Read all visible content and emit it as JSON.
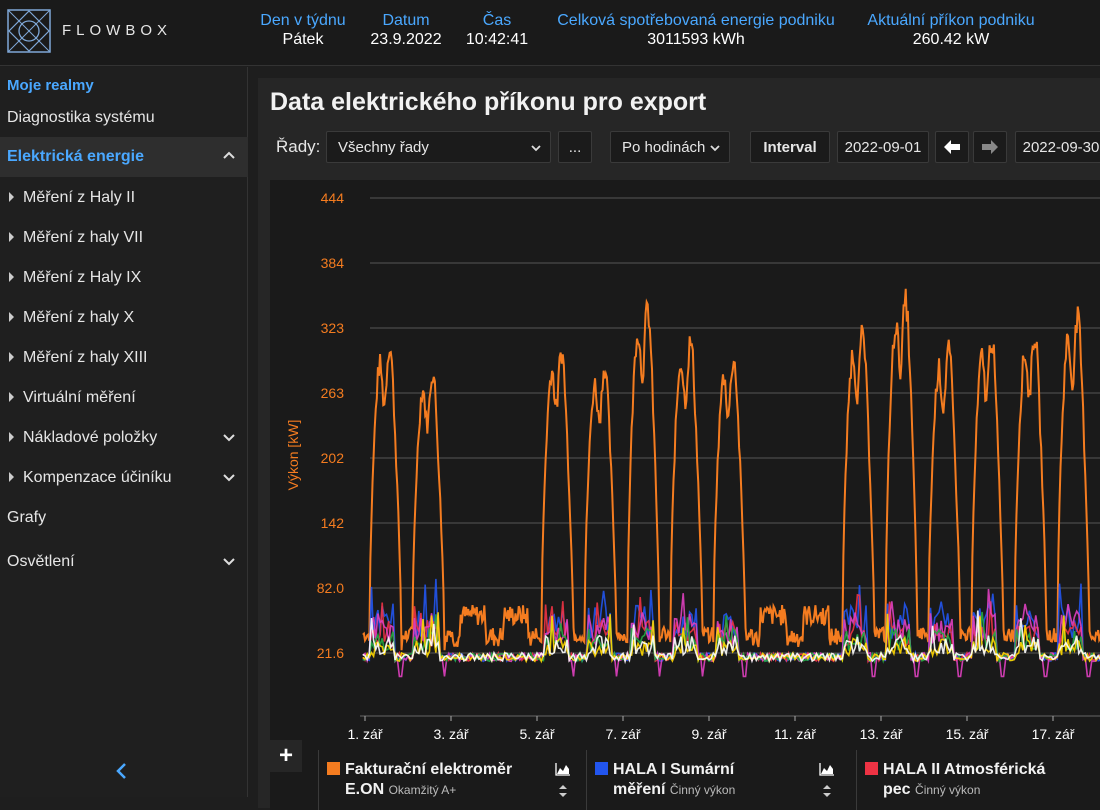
{
  "header": {
    "brand": "FLOWBOX",
    "stats": [
      {
        "label": "Den v týdnu",
        "value": "Pátek"
      },
      {
        "label": "Datum",
        "value": "23.9.2022"
      },
      {
        "label": "Čas",
        "value": "10:42:41"
      },
      {
        "label": "Celková spotřebovaná energie podniku",
        "value": "3011593 kWh"
      },
      {
        "label": "Aktuální příkon podniku",
        "value": "260.42 kW"
      }
    ]
  },
  "sidebar": {
    "title": "Moje realmy",
    "items": [
      {
        "label": "Diagnostika systému"
      },
      {
        "label": "Elektrická energie"
      },
      {
        "label": "Měření z Haly II"
      },
      {
        "label": "Měření z haly VII"
      },
      {
        "label": "Měření z Haly IX"
      },
      {
        "label": "Měření z haly X"
      },
      {
        "label": "Měření z haly XIII"
      },
      {
        "label": "Virtuální měření"
      },
      {
        "label": "Nákladové položky"
      },
      {
        "label": "Kompenzace účiníku"
      },
      {
        "label": "Grafy"
      },
      {
        "label": "Osvětlení"
      }
    ]
  },
  "main": {
    "title": "Data elektrického příkonu pro export",
    "series_label": "Řady:",
    "series_select": "Všechny řady",
    "more_button": "...",
    "granularity_select": "Po hodinách",
    "interval_button": "Interval",
    "date_from": "2022-09-01",
    "date_to": "2022-09-30"
  },
  "legend": [
    {
      "name_line1": "Fakturační elektroměr",
      "name_line2": "E.ON",
      "subtitle": "Okamžitý A+",
      "color": "#f47c20"
    },
    {
      "name_line1": "HALA I Sumární",
      "name_line2": "měření",
      "subtitle": "Činný výkon",
      "color": "#2255ee"
    },
    {
      "name_line1": "HALA II Atmosférická",
      "name_line2": "pec",
      "subtitle": "Činný výkon",
      "color": "#ee3344"
    }
  ],
  "chart_data": {
    "type": "line",
    "ylabel": "Výkon [kW]",
    "yticks": [
      "444",
      "384",
      "323",
      "263",
      "202",
      "142",
      "82.0",
      "21.6"
    ],
    "ylim": [
      -5,
      444
    ],
    "xticks": [
      "1. zář",
      "3. zář",
      "5. zář",
      "7. zář",
      "9. zář",
      "11. zář",
      "13. zář",
      "15. zář",
      "17. zář"
    ],
    "grid": true,
    "series": [
      {
        "name": "Fakturační elektroměr E.ON",
        "color": "#f47c20",
        "peaks": [
          {
            "day": 1.2,
            "value": 340
          },
          {
            "day": 2.2,
            "value": 312
          },
          {
            "day": 5.2,
            "value": 334
          },
          {
            "day": 6.2,
            "value": 318
          },
          {
            "day": 7.2,
            "value": 378
          },
          {
            "day": 8.2,
            "value": 344
          },
          {
            "day": 9.2,
            "value": 326
          },
          {
            "day": 12.2,
            "value": 352
          },
          {
            "day": 13.2,
            "value": 386
          },
          {
            "day": 14.2,
            "value": 335
          },
          {
            "day": 15.2,
            "value": 348
          },
          {
            "day": 16.2,
            "value": 352
          },
          {
            "day": 17.2,
            "value": 368
          }
        ]
      },
      {
        "name": "HALA I Sumární měření",
        "color": "#2255ee"
      },
      {
        "name": "HALA II Atmosférická pec",
        "color": "#ee3344"
      },
      {
        "color": "#e040c0"
      },
      {
        "color": "#22aa44"
      },
      {
        "color": "#ffd700"
      },
      {
        "color": "#ffffff"
      }
    ]
  }
}
